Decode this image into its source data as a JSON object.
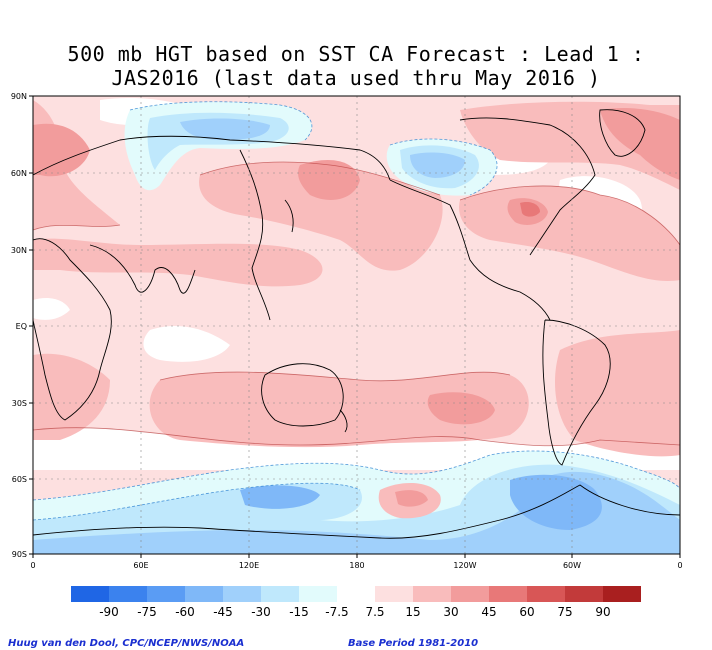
{
  "title": {
    "line1": "500 mb HGT based on SST CA Forecast : Lead 1 :",
    "line2": "JAS2016 (last data used thru May 2016 )"
  },
  "lat_labels": [
    "90N",
    "60N",
    "30N",
    "EQ",
    "30S",
    "60S",
    "90S"
  ],
  "lon_labels": [
    "0",
    "60E",
    "120E",
    "180",
    "120W",
    "60W",
    "0"
  ],
  "legend": {
    "labels": [
      "-90",
      "-75",
      "-60",
      "-45",
      "-30",
      "-15",
      "-7.5",
      "7.5",
      "15",
      "30",
      "45",
      "60",
      "75",
      "90"
    ],
    "colors": [
      "#1f66e5",
      "#3b82ee",
      "#5a9cf4",
      "#7fb8f8",
      "#a0d0fb",
      "#bfe8fc",
      "#e2fbfc",
      "#ffffff",
      "#fde0e0",
      "#f9bcbc",
      "#f29c9c",
      "#e87878",
      "#d85656",
      "#c23a3a",
      "#a91f1f"
    ]
  },
  "footer": {
    "left": "Huug van den Dool, CPC/NCEP/NWS/NOAA",
    "right": "Base Period 1981-2010"
  }
}
